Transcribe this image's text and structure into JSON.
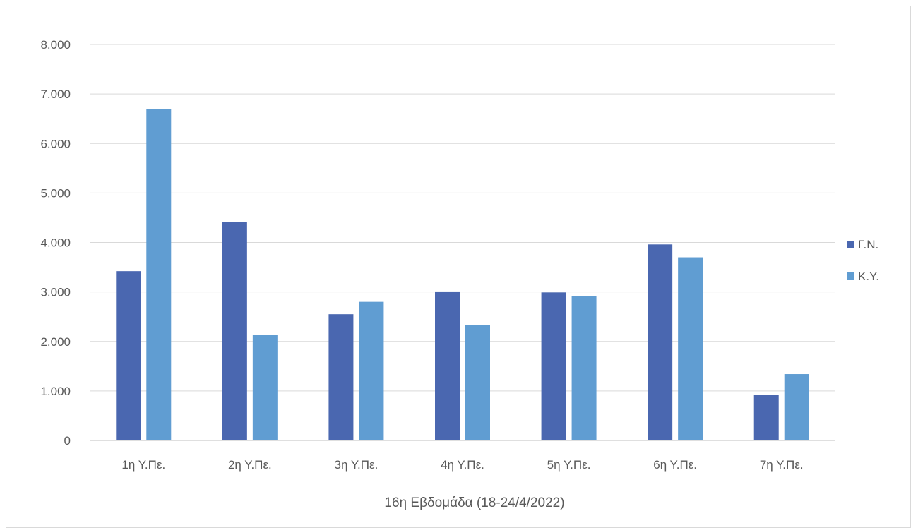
{
  "chart_data": {
    "type": "bar",
    "title": "",
    "xlabel": "16η Εβδομάδα (18-24/4/2022)",
    "ylabel": "",
    "categories": [
      "1η Υ.Πε.",
      "2η Υ.Πε.",
      "3η Υ.Πε.",
      "4η Υ.Πε.",
      "5η Υ.Πε.",
      "6η Υ.Πε.",
      "7η Υ.Πε."
    ],
    "series": [
      {
        "name": "Γ.Ν.",
        "color": "#4a67b0",
        "values": [
          3420,
          4420,
          2550,
          3010,
          2990,
          3960,
          920
        ]
      },
      {
        "name": "Κ.Υ.",
        "color": "#609dd2",
        "values": [
          6690,
          2130,
          2800,
          2330,
          2910,
          3700,
          1340
        ]
      }
    ],
    "ylim": [
      0,
      8000
    ],
    "yticks": [
      0,
      1000,
      2000,
      3000,
      4000,
      5000,
      6000,
      7000,
      8000
    ],
    "ytick_labels": [
      "0",
      "1.000",
      "2.000",
      "3.000",
      "4.000",
      "5.000",
      "6.000",
      "7.000",
      "8.000"
    ],
    "grid": true,
    "legend_position": "right"
  }
}
